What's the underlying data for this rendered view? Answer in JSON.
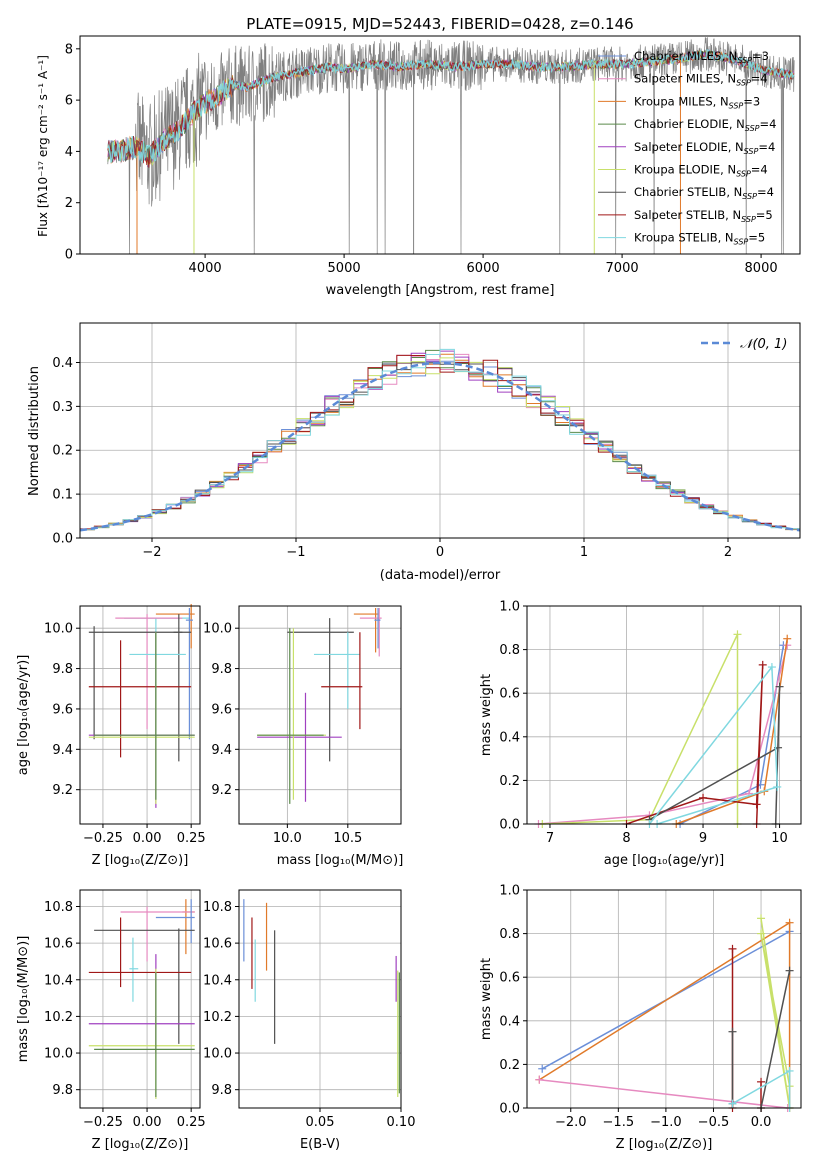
{
  "figure": {
    "title": "PLATE=0915, MJD=52443, FIBERID=0428, z=0.146"
  },
  "series_colors": {
    "chabrier_miles": "#6b8fd8",
    "salpeter_miles": "#e68ac0",
    "kroupa_miles": "#e07a2a",
    "chabrier_elodie": "#5a8a4a",
    "salpeter_elodie": "#a040c0",
    "kroupa_elodie": "#c8e06a",
    "chabrier_stelib": "#505050",
    "salpeter_stelib": "#a01818",
    "kroupa_stelib": "#80d8e0",
    "data": "#808080",
    "normal": "#5b8ad6"
  },
  "chart_data": [
    {
      "id": "spectrum",
      "type": "line",
      "xlabel": "wavelength [Angstrom, rest frame]",
      "ylabel": "Flux [fλ10⁻¹⁷ erg cm⁻² s⁻¹ A⁻¹]",
      "xlim": [
        3100,
        8280
      ],
      "ylim": [
        0,
        8.5
      ],
      "xticks": [
        4000,
        5000,
        6000,
        7000,
        8000
      ],
      "yticks": [
        0,
        2,
        4,
        6,
        8
      ],
      "grid": false,
      "legend_position": "right",
      "legend": [
        "Chabrier MILES, N_SSP=3",
        "Salpeter MILES, N_SSP=4",
        "Kroupa MILES, N_SSP=3",
        "Chabrier ELODIE, N_SSP=4",
        "Salpeter ELODIE, N_SSP=4",
        "Kroupa ELODIE, N_SSP=4",
        "Chabrier STELIB, N_SSP=4",
        "Salpeter STELIB, N_SSP=5",
        "Kroupa STELIB, N_SSP=5"
      ],
      "model_continuum": {
        "x": [
          3300,
          3400,
          3500,
          3600,
          3700,
          3800,
          3900,
          4000,
          4100,
          4200,
          4300,
          4500,
          4700,
          4900,
          5000,
          5200,
          5400,
          5600,
          5800,
          6000,
          6200,
          6400,
          6600,
          6800,
          7000,
          7200,
          7400,
          7600,
          7800,
          8000,
          8200
        ],
        "y": [
          4.0,
          4.0,
          4.2,
          3.8,
          4.4,
          4.8,
          5.4,
          5.9,
          6.2,
          6.6,
          6.5,
          6.9,
          7.1,
          7.3,
          7.2,
          7.4,
          7.3,
          7.4,
          7.3,
          7.4,
          7.4,
          7.3,
          7.3,
          7.4,
          7.4,
          7.5,
          7.6,
          7.8,
          7.6,
          7.2,
          7.0
        ]
      }
    },
    {
      "id": "residuals",
      "type": "bar",
      "xlabel": "(data-model)/error",
      "ylabel": "Normed distribution",
      "xlim": [
        -2.5,
        2.5
      ],
      "ylim": [
        0,
        0.49
      ],
      "xticks": [
        -2,
        -1,
        0,
        1,
        2
      ],
      "yticks": [
        0.0,
        0.1,
        0.2,
        0.3,
        0.4
      ],
      "grid": true,
      "legend_position": "top-right",
      "legend": [
        "𝒩(0, 1)"
      ]
    },
    {
      "id": "age_vs_Z",
      "type": "scatter",
      "xlabel": "Z [log₁₀(Z/Z⊙)]",
      "ylabel": "age  [log₁₀(age/yr)]",
      "xlim": [
        -0.38,
        0.3
      ],
      "ylim": [
        9.03,
        10.11
      ],
      "xticks": [
        -0.25,
        0.0,
        0.25
      ],
      "xticklabels": [
        "−0.25",
        "0.00",
        "0.25"
      ],
      "yticks": [
        9.2,
        9.4,
        9.6,
        9.8,
        10.0
      ],
      "grid": true
    },
    {
      "id": "age_vs_mass",
      "type": "scatter",
      "xlabel": "mass [log₁₀(M/M⊙)]",
      "xlim": [
        9.6,
        10.94
      ],
      "ylim": [
        9.03,
        10.11
      ],
      "xticks": [
        10.0,
        10.5
      ],
      "yticks": [
        9.2,
        9.4,
        9.6,
        9.8,
        10.0
      ],
      "grid": true
    },
    {
      "id": "weight_vs_age",
      "type": "line",
      "xlabel": "age  [log₁₀(age/yr)]",
      "ylabel": "mass weight",
      "xlim": [
        6.7,
        10.28
      ],
      "ylim": [
        0,
        1.0
      ],
      "xticks": [
        7,
        8,
        9,
        10
      ],
      "yticks": [
        0.0,
        0.2,
        0.4,
        0.6,
        0.8,
        1.0
      ],
      "grid": true
    },
    {
      "id": "mass_vs_Z",
      "type": "scatter",
      "xlabel": "Z [log₁₀(Z/Z⊙)]",
      "ylabel": "mass [log₁₀(M/M⊙)]",
      "xlim": [
        -0.38,
        0.3
      ],
      "ylim": [
        9.7,
        10.89
      ],
      "xticks": [
        -0.25,
        0.0,
        0.25
      ],
      "xticklabels": [
        "−0.25",
        "0.00",
        "0.25"
      ],
      "yticks": [
        9.8,
        10.0,
        10.2,
        10.4,
        10.6,
        10.8
      ],
      "grid": true
    },
    {
      "id": "mass_vs_ebv",
      "type": "scatter",
      "xlabel": "E(B-V)",
      "xlim": [
        0.0,
        0.1
      ],
      "ylim": [
        9.7,
        10.89
      ],
      "xticks": [
        0.05,
        0.1
      ],
      "xticklabels": [
        "0.05",
        "0.10"
      ],
      "yticks": [
        9.8,
        10.0,
        10.2,
        10.4,
        10.6,
        10.8
      ],
      "grid": true
    },
    {
      "id": "weight_vs_Z",
      "type": "line",
      "xlabel": "Z [log₁₀(Z/Z⊙)]",
      "ylabel": "mass weight",
      "xlim": [
        -2.46,
        0.42
      ],
      "ylim": [
        0,
        1.0
      ],
      "xticks": [
        -2.0,
        -1.5,
        -1.0,
        -0.5,
        0.0
      ],
      "xticklabels": [
        "−2.0",
        "−1.5",
        "−1.0",
        "−0.5",
        "0.0"
      ],
      "yticks": [
        0.0,
        0.2,
        0.4,
        0.6,
        0.8,
        1.0
      ],
      "grid": true
    }
  ]
}
